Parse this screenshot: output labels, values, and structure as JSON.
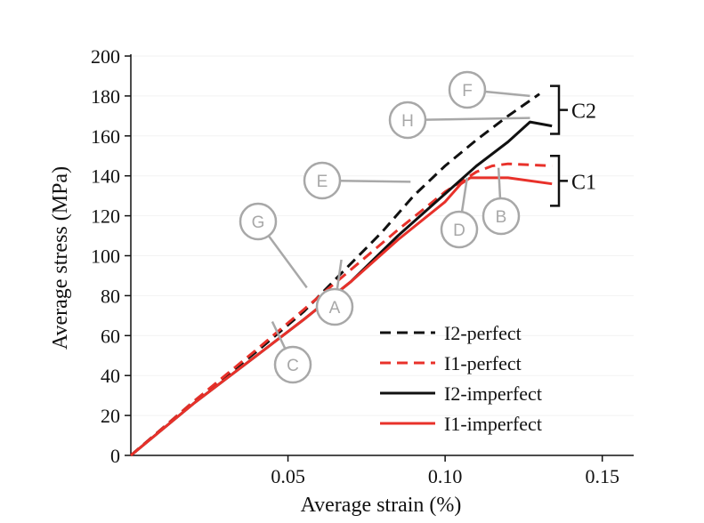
{
  "chart_data": {
    "type": "line",
    "xlabel": "Average strain (%)",
    "ylabel": "Average stress (MPa)",
    "xlim": [
      0,
      0.16
    ],
    "ylim": [
      0,
      200
    ],
    "xticks": [
      0.05,
      0.1,
      0.15
    ],
    "xtick_labels": [
      "0.05",
      "0.10",
      "0.15"
    ],
    "yticks": [
      0,
      20,
      40,
      60,
      80,
      100,
      120,
      140,
      160,
      180,
      200
    ],
    "ytick_labels": [
      "0",
      "20",
      "40",
      "60",
      "80",
      "100",
      "120",
      "140",
      "160",
      "180",
      "200"
    ],
    "legend_position": "bottom-right",
    "series": [
      {
        "name": "I2-perfect",
        "color": "#111111",
        "dash": "dashed",
        "points": [
          [
            0,
            0
          ],
          [
            0.02,
            27
          ],
          [
            0.04,
            52
          ],
          [
            0.055,
            72
          ],
          [
            0.065,
            88
          ],
          [
            0.08,
            112
          ],
          [
            0.09,
            130
          ],
          [
            0.1,
            145
          ],
          [
            0.11,
            158
          ],
          [
            0.12,
            170
          ],
          [
            0.13,
            181
          ]
        ]
      },
      {
        "name": "I1-perfect",
        "color": "#e8312a",
        "dash": "dashed",
        "points": [
          [
            0,
            0
          ],
          [
            0.02,
            27
          ],
          [
            0.04,
            53
          ],
          [
            0.055,
            73
          ],
          [
            0.07,
            93
          ],
          [
            0.085,
            113
          ],
          [
            0.1,
            132
          ],
          [
            0.11,
            142
          ],
          [
            0.115,
            145
          ],
          [
            0.12,
            146
          ],
          [
            0.134,
            145
          ]
        ]
      },
      {
        "name": "I2-imperfect",
        "color": "#111111",
        "dash": "solid",
        "points": [
          [
            0,
            0
          ],
          [
            0.02,
            26
          ],
          [
            0.04,
            50
          ],
          [
            0.055,
            68
          ],
          [
            0.07,
            87
          ],
          [
            0.085,
            110
          ],
          [
            0.1,
            131
          ],
          [
            0.11,
            145
          ],
          [
            0.12,
            157
          ],
          [
            0.127,
            167
          ],
          [
            0.134,
            165
          ]
        ]
      },
      {
        "name": "I1-imperfect",
        "color": "#e8312a",
        "dash": "solid",
        "points": [
          [
            0,
            0
          ],
          [
            0.02,
            26
          ],
          [
            0.04,
            50
          ],
          [
            0.055,
            68
          ],
          [
            0.07,
            87
          ],
          [
            0.085,
            108
          ],
          [
            0.1,
            127
          ],
          [
            0.105,
            136
          ],
          [
            0.108,
            139
          ],
          [
            0.12,
            139
          ],
          [
            0.134,
            136
          ]
        ]
      }
    ],
    "annotations": [
      {
        "label": "F",
        "anchor": [
          0.127,
          180
        ]
      },
      {
        "label": "H",
        "anchor": [
          0.127,
          169
        ]
      },
      {
        "label": "E",
        "anchor": [
          0.089,
          137
        ]
      },
      {
        "label": "B",
        "anchor": [
          0.117,
          144
        ]
      },
      {
        "label": "D",
        "anchor": [
          0.107,
          139
        ]
      },
      {
        "label": "G",
        "anchor": [
          0.056,
          84
        ]
      },
      {
        "label": "A",
        "anchor": [
          0.067,
          98
        ]
      },
      {
        "label": "C",
        "anchor": [
          0.045,
          67
        ]
      }
    ],
    "groups": [
      {
        "label": "C2",
        "range": [
          161,
          185
        ]
      },
      {
        "label": "C1",
        "range": [
          125,
          150
        ]
      }
    ]
  }
}
